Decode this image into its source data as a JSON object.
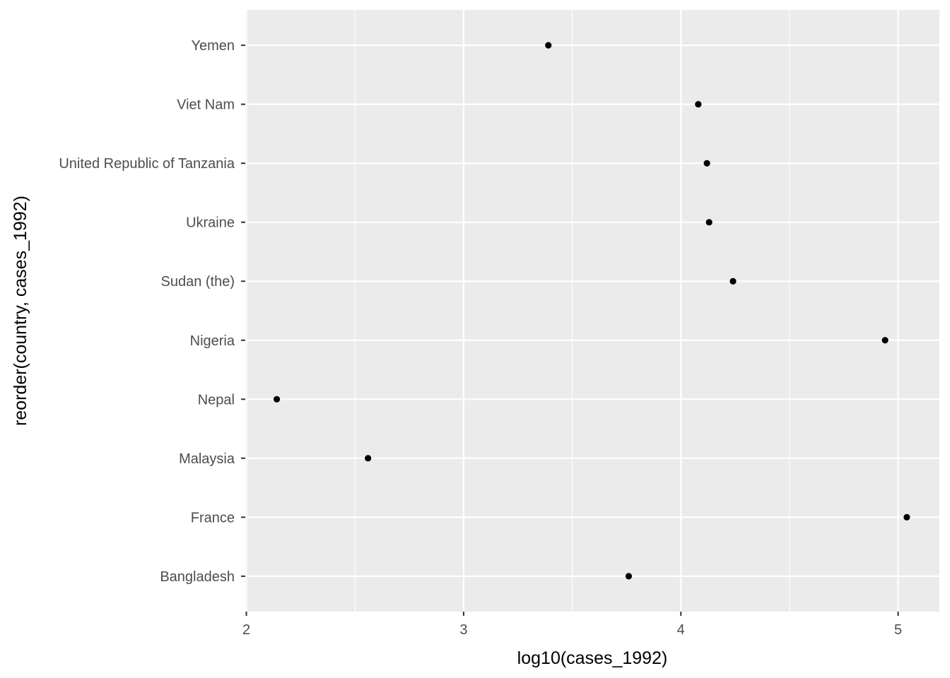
{
  "chart_data": {
    "type": "scatter",
    "title": "",
    "xlabel": "log10(cases_1992)",
    "ylabel": "reorder(country, cases_1992)",
    "xlim": [
      1.995,
      5.19
    ],
    "x_ticks": [
      2,
      3,
      4,
      5
    ],
    "categories": [
      "Bangladesh",
      "France",
      "Malaysia",
      "Nepal",
      "Nigeria",
      "Sudan (the)",
      "Ukraine",
      "United Republic of Tanzania",
      "Viet Nam",
      "Yemen"
    ],
    "values": [
      3.76,
      5.04,
      2.56,
      2.14,
      4.94,
      4.24,
      4.13,
      4.12,
      4.08,
      3.39
    ],
    "grid": true,
    "legend": "none",
    "colors": {
      "panel": "#ebebeb",
      "grid": "#ffffff",
      "point": "#000000",
      "tick_text": "#4d4d4d",
      "axis_title": "#000000"
    }
  }
}
